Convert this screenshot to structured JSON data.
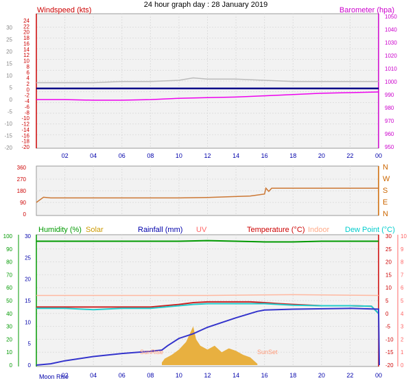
{
  "page_title": "24 hour graph day : 28 January 2019",
  "x_axis": {
    "labels": [
      "02",
      "04",
      "06",
      "08",
      "10",
      "12",
      "14",
      "16",
      "18",
      "20",
      "22",
      "00"
    ],
    "label_color": "#0000aa"
  },
  "chart_data": [
    {
      "id": "wind_baro",
      "type": "line",
      "title_left": "Windspeed (kts)",
      "title_right": "Barometer (hpa)",
      "left_axis": {
        "ticks": [
          "24",
          "22",
          "20",
          "18",
          "16",
          "14",
          "12",
          "10",
          "8",
          "6",
          "4",
          "2",
          "0",
          "-2",
          "-4",
          "-6",
          "-8",
          "-10",
          "-12",
          "-14",
          "-16",
          "-18",
          "-20"
        ],
        "ylim": [
          -20,
          25
        ],
        "color": "#cc0000"
      },
      "outer_left_axis": {
        "ticks": [
          "30",
          "25",
          "20",
          "15",
          "10",
          "5",
          "0",
          "-5",
          "-10",
          "-15",
          "-20"
        ],
        "color": "#888888"
      },
      "right_axis": {
        "ticks": [
          "1050",
          "1040",
          "1030",
          "1020",
          "1010",
          "1000",
          "990",
          "980",
          "970",
          "960",
          "950"
        ],
        "ylim": [
          947.5,
          1050
        ],
        "color": "#cc00cc"
      },
      "series": [
        {
          "key": "wind_gray",
          "color": "#bbbbbb",
          "axis": "outer_left",
          "x": [
            0,
            2,
            4,
            6,
            8,
            10,
            11,
            12,
            14,
            16,
            18,
            20,
            22,
            24
          ],
          "y": [
            7,
            7,
            7,
            7.5,
            7.5,
            8,
            9,
            8.5,
            8.5,
            8,
            7.5,
            7.5,
            7.5,
            7.5
          ]
        },
        {
          "key": "barometer",
          "color": "#ee00ee",
          "axis": "right",
          "x": [
            0,
            2,
            4,
            6,
            8,
            10,
            12,
            14,
            16,
            18,
            20,
            22,
            24
          ],
          "y": [
            984,
            984,
            983.5,
            983.5,
            984,
            985,
            985.5,
            986,
            987,
            988,
            989,
            989.5,
            990
          ]
        },
        {
          "key": "windspeed_zero",
          "color": "#000088",
          "axis": "left",
          "x": [
            0,
            24
          ],
          "y": [
            0,
            0
          ]
        }
      ]
    },
    {
      "id": "wind_dir",
      "type": "line",
      "left_axis": {
        "ticks": [
          "360",
          "270",
          "180",
          "90",
          "0"
        ],
        "ylim": [
          0,
          360
        ],
        "color": "#cc0000"
      },
      "right_axis": {
        "labels": [
          "N",
          "W",
          "S",
          "E",
          "N"
        ],
        "color": "#cc6600"
      },
      "series": [
        {
          "key": "direction",
          "color": "#cc7733",
          "x": [
            0,
            0.5,
            1,
            6,
            10,
            12,
            15,
            16,
            16.1,
            16.3,
            16.5,
            17,
            24
          ],
          "y": [
            90,
            130,
            125,
            125,
            125,
            128,
            140,
            155,
            200,
            175,
            200,
            200,
            200
          ]
        }
      ]
    },
    {
      "id": "temp_humidity",
      "type": "line",
      "labels": {
        "humidity": "Humidity (%)",
        "solar": "Solar",
        "rainfall": "Rainfall (mm)",
        "uv": "UV",
        "temperature": "Temperature (°C)",
        "indoor": "Indoor",
        "dewpoint": "Dew Point (°C)",
        "sunrise": "SunRise",
        "sunset": "SunSet",
        "moonrise": "Moon Rise"
      },
      "colors": {
        "humidity": "#009900",
        "solar": "#cc9900",
        "rainfall": "#0000aa",
        "uv": "#ff6666",
        "temperature": "#cc0000",
        "indoor": "#ffaa88",
        "dewpoint": "#00cccc"
      },
      "humidity_axis": {
        "ticks": [
          "100",
          "90",
          "80",
          "70",
          "60",
          "50",
          "40",
          "30",
          "20",
          "10",
          "0"
        ],
        "ylim": [
          0,
          100
        ]
      },
      "rain_axis": {
        "ticks": [
          "30",
          "25",
          "20",
          "15",
          "10",
          "5",
          "0"
        ],
        "ylim": [
          0,
          30
        ]
      },
      "temp_axis": {
        "ticks": [
          "30",
          "25",
          "20",
          "15",
          "10",
          "5",
          "0",
          "-5",
          "-10",
          "-15",
          "-20"
        ],
        "ylim": [
          -20,
          30
        ]
      },
      "uv_axis": {
        "ticks": [
          "10",
          "9",
          "8",
          "7",
          "6",
          "5",
          "4",
          "3",
          "2",
          "1",
          "0"
        ],
        "ylim": [
          0,
          10
        ]
      },
      "series": [
        {
          "key": "humidity",
          "color": "#009900",
          "axis": "humidity",
          "x": [
            0,
            6,
            10,
            12,
            14,
            16,
            18,
            20,
            22,
            24
          ],
          "y": [
            96,
            96,
            96,
            96.5,
            96,
            95.5,
            95.5,
            96,
            96,
            96
          ]
        },
        {
          "key": "indoor",
          "color": "#ffb8a0",
          "axis": "temp",
          "x": [
            0,
            6,
            12,
            18,
            24
          ],
          "y": [
            7,
            7,
            7,
            7.3,
            7
          ]
        },
        {
          "key": "temperature",
          "color": "#cc2222",
          "axis": "temp",
          "x": [
            0,
            2,
            4,
            6,
            8,
            9,
            10,
            11,
            12,
            14,
            15,
            16,
            17,
            18,
            20,
            22,
            23.5,
            24
          ],
          "y": [
            2.5,
            2.5,
            2.5,
            2.5,
            2.5,
            3,
            3.5,
            4.2,
            4.5,
            4.5,
            4.5,
            4.2,
            3.8,
            3.5,
            3,
            3,
            2.8,
            0
          ]
        },
        {
          "key": "dewpoint",
          "color": "#22cccc",
          "axis": "temp",
          "x": [
            0,
            2,
            4,
            6,
            8,
            9,
            10,
            11,
            12,
            14,
            15,
            16,
            17,
            18,
            20,
            22,
            23.5,
            24
          ],
          "y": [
            2,
            2,
            1.5,
            2,
            2,
            2.5,
            3,
            3.5,
            3.8,
            3.8,
            3.8,
            3.8,
            3.5,
            3.2,
            3,
            3,
            2.8,
            0
          ]
        },
        {
          "key": "rainfall",
          "color": "#3333cc",
          "axis": "rain",
          "x": [
            0,
            1,
            2,
            4,
            6,
            8,
            8.8,
            9.2,
            10,
            11,
            12,
            14,
            15,
            15.5,
            16,
            18,
            22,
            24,
            24.05
          ],
          "y": [
            0,
            0.3,
            1,
            2,
            2.7,
            3.2,
            3.5,
            4.5,
            6.2,
            7.3,
            8.8,
            11,
            12,
            12.5,
            12.8,
            13,
            13.2,
            13,
            0
          ]
        }
      ],
      "solar_area": {
        "color": "#e8b040",
        "x": [
          8.8,
          9,
          9.5,
          10,
          10.5,
          11,
          11.2,
          11.5,
          12,
          12.5,
          13,
          13.5,
          14,
          14.5,
          15,
          15.5
        ],
        "y": [
          0.2,
          0.5,
          0.8,
          1.2,
          1.8,
          3,
          2,
          1.5,
          1.2,
          1.5,
          1,
          1.3,
          1.1,
          0.8,
          0.6,
          0.1
        ]
      }
    }
  ]
}
